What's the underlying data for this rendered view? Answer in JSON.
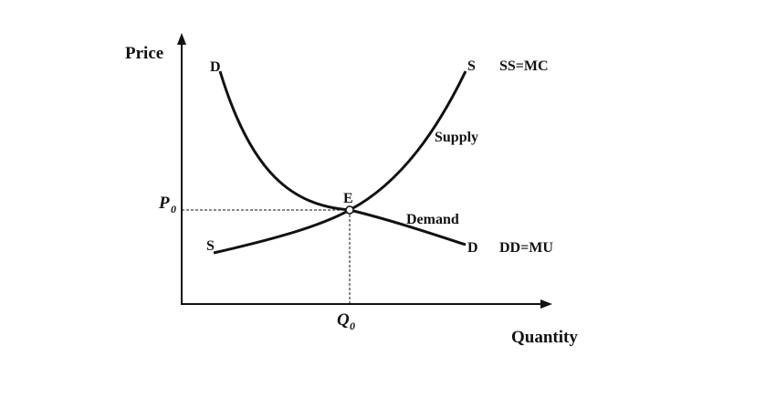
{
  "axes": {
    "y_label": "Price",
    "x_label": "Quantity"
  },
  "curves": {
    "demand": {
      "start_label": "D",
      "end_label": "D",
      "name_label": "Demand",
      "equation_label": "DD=MU"
    },
    "supply": {
      "start_label": "S",
      "end_label": "S",
      "name_label": "Supply",
      "equation_label": "SS=MC"
    }
  },
  "equilibrium": {
    "point_label": "E",
    "price_main": "P",
    "price_sub": "0",
    "quantity_main": "Q",
    "quantity_sub": "0"
  },
  "colors": {
    "ink": "#111111",
    "background": "#ffffff"
  }
}
